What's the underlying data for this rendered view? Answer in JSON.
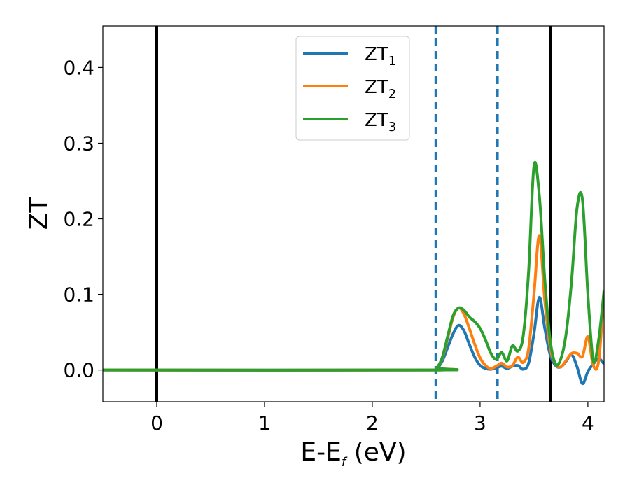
{
  "chart_data": {
    "type": "line",
    "xlabel_main": "E-E",
    "xlabel_sub": "f",
    "xlabel_unit": " (eV)",
    "ylabel": "ZT",
    "xlim": [
      -0.5,
      4.15
    ],
    "ylim": [
      -0.042,
      0.455
    ],
    "xticks": [
      0,
      1,
      2,
      3,
      4
    ],
    "yticks": [
      0.0,
      0.1,
      0.2,
      0.3,
      0.4
    ],
    "ytick_labels": [
      "0.0",
      "0.1",
      "0.2",
      "0.3",
      "0.4"
    ],
    "legend_position": "top-center",
    "vlines_solid": [
      0.0,
      3.65
    ],
    "vlines_dashed": [
      2.59,
      3.16
    ],
    "vline_solid_color": "#000000",
    "vline_dashed_color": "#1f77b4",
    "series": [
      {
        "name": "ZT",
        "sub": "1",
        "color": "#1f77b4",
        "points": [
          [
            -0.5,
            0.0
          ],
          [
            2.55,
            0.0
          ],
          [
            2.6,
            0.002
          ],
          [
            2.65,
            0.012
          ],
          [
            2.7,
            0.03
          ],
          [
            2.75,
            0.048
          ],
          [
            2.8,
            0.059
          ],
          [
            2.85,
            0.052
          ],
          [
            2.9,
            0.034
          ],
          [
            2.95,
            0.017
          ],
          [
            3.0,
            0.006
          ],
          [
            3.05,
            0.002
          ],
          [
            3.1,
            0.001
          ],
          [
            3.15,
            0.003
          ],
          [
            3.2,
            0.005
          ],
          [
            3.25,
            0.002
          ],
          [
            3.3,
            0.005
          ],
          [
            3.35,
            0.006
          ],
          [
            3.4,
            0.001
          ],
          [
            3.45,
            0.009
          ],
          [
            3.5,
            0.048
          ],
          [
            3.55,
            0.096
          ],
          [
            3.6,
            0.055
          ],
          [
            3.65,
            0.02
          ],
          [
            3.7,
            0.006
          ],
          [
            3.75,
            0.004
          ],
          [
            3.8,
            0.012
          ],
          [
            3.85,
            0.02
          ],
          [
            3.9,
            0.004
          ],
          [
            3.95,
            -0.018
          ],
          [
            4.0,
            -0.002
          ],
          [
            4.05,
            0.008
          ],
          [
            4.1,
            0.015
          ],
          [
            4.15,
            0.008
          ]
        ]
      },
      {
        "name": "ZT",
        "sub": "2",
        "color": "#ff7f0e",
        "points": [
          [
            -0.5,
            0.0
          ],
          [
            2.55,
            0.0
          ],
          [
            2.6,
            0.003
          ],
          [
            2.65,
            0.016
          ],
          [
            2.7,
            0.042
          ],
          [
            2.75,
            0.07
          ],
          [
            2.8,
            0.082
          ],
          [
            2.85,
            0.074
          ],
          [
            2.9,
            0.055
          ],
          [
            2.95,
            0.034
          ],
          [
            3.0,
            0.016
          ],
          [
            3.05,
            0.006
          ],
          [
            3.1,
            0.002
          ],
          [
            3.15,
            0.005
          ],
          [
            3.2,
            0.009
          ],
          [
            3.25,
            0.004
          ],
          [
            3.3,
            0.006
          ],
          [
            3.35,
            0.017
          ],
          [
            3.4,
            0.01
          ],
          [
            3.45,
            0.028
          ],
          [
            3.5,
            0.1
          ],
          [
            3.55,
            0.178
          ],
          [
            3.6,
            0.092
          ],
          [
            3.65,
            0.03
          ],
          [
            3.7,
            0.008
          ],
          [
            3.75,
            0.004
          ],
          [
            3.8,
            0.013
          ],
          [
            3.85,
            0.022
          ],
          [
            3.9,
            0.022
          ],
          [
            3.95,
            0.018
          ],
          [
            4.0,
            0.044
          ],
          [
            4.05,
            0.006
          ],
          [
            4.1,
            0.012
          ],
          [
            4.15,
            0.105
          ]
        ]
      },
      {
        "name": "ZT",
        "sub": "3",
        "color": "#2ca02c",
        "points": [
          [
            -0.5,
            0.0
          ],
          [
            2.55,
            0.0
          ],
          [
            2.6,
            0.003
          ],
          [
            2.65,
            0.017
          ],
          [
            2.7,
            0.045
          ],
          [
            2.75,
            0.072
          ],
          [
            2.8,
            0.082
          ],
          [
            2.85,
            0.079
          ],
          [
            2.9,
            0.07
          ],
          [
            2.95,
            0.064
          ],
          [
            3.0,
            0.055
          ],
          [
            3.05,
            0.04
          ],
          [
            3.1,
            0.022
          ],
          [
            3.15,
            0.014
          ],
          [
            3.2,
            0.023
          ],
          [
            3.25,
            0.012
          ],
          [
            3.3,
            0.032
          ],
          [
            3.35,
            0.025
          ],
          [
            3.4,
            0.045
          ],
          [
            3.45,
            0.13
          ],
          [
            3.5,
            0.27
          ],
          [
            3.55,
            0.23
          ],
          [
            3.6,
            0.12
          ],
          [
            3.65,
            0.04
          ],
          [
            3.7,
            0.008
          ],
          [
            3.75,
            0.015
          ],
          [
            3.8,
            0.05
          ],
          [
            3.85,
            0.12
          ],
          [
            3.9,
            0.215
          ],
          [
            3.95,
            0.225
          ],
          [
            4.0,
            0.1
          ],
          [
            4.05,
            0.012
          ],
          [
            4.1,
            0.04
          ],
          [
            4.15,
            0.105
          ]
        ]
      }
    ]
  }
}
